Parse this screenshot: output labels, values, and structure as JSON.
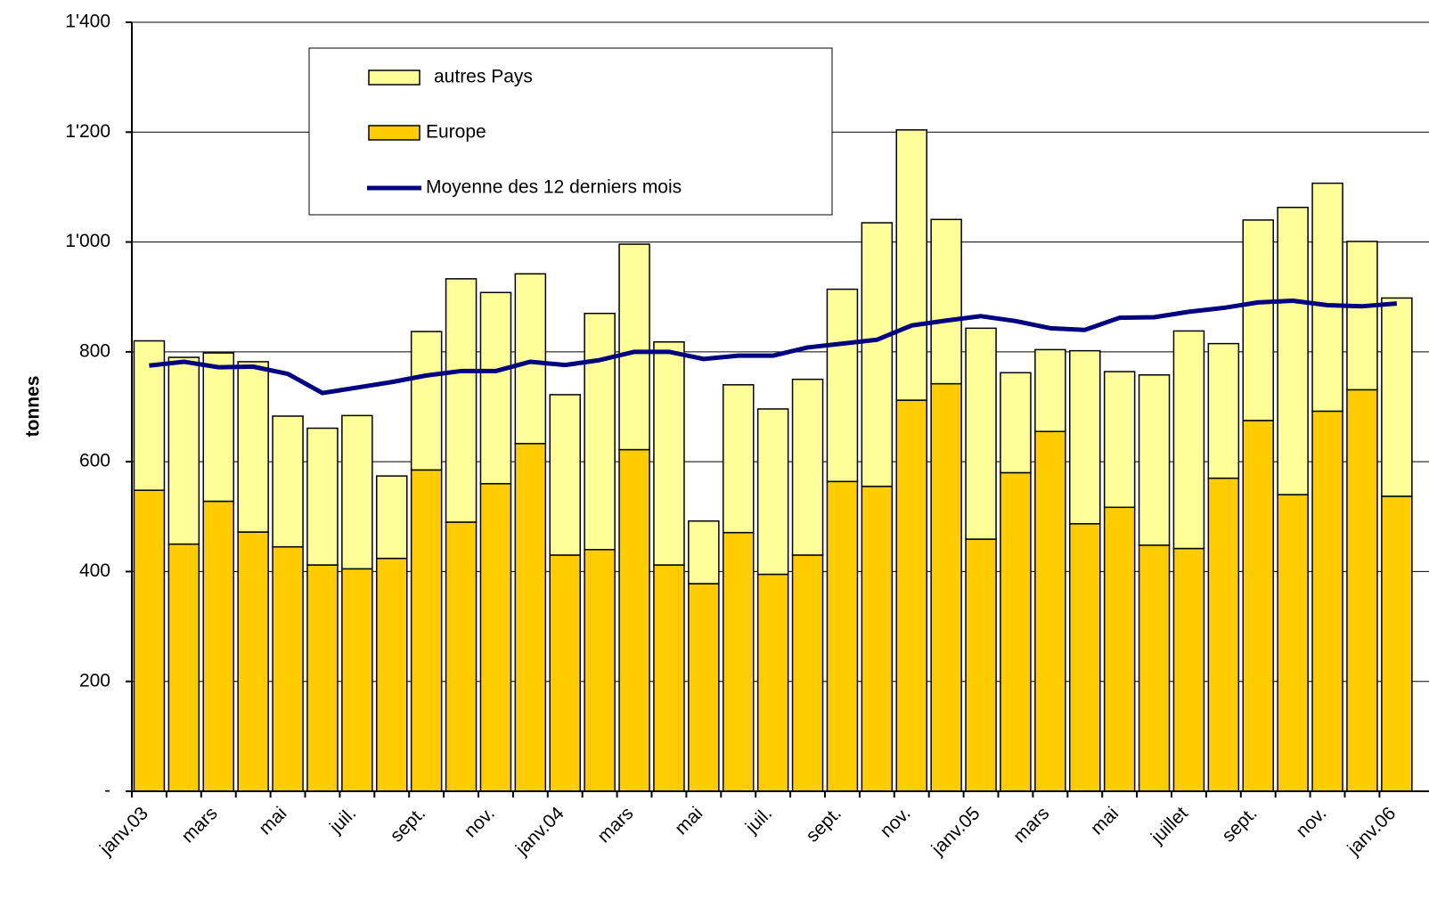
{
  "chart_data": {
    "type": "bar",
    "stacked": true,
    "y_label": "tonnes",
    "categories": [
      "janv.03",
      null,
      "mars",
      null,
      "mai",
      null,
      "juil.",
      null,
      "sept.",
      null,
      "nov.",
      null,
      "janv.04",
      null,
      "mars",
      null,
      "mai",
      null,
      "juil.",
      null,
      "sept.",
      null,
      "nov.",
      null,
      "janv.05",
      null,
      "mars",
      null,
      "mai",
      null,
      "juillet",
      null,
      "sept.",
      null,
      "nov.",
      null,
      "janv.06"
    ],
    "series": [
      {
        "name": "autres Pays",
        "type": "bar",
        "color": "#ffff99",
        "values": [
          272,
          340,
          270,
          310,
          238,
          249,
          279,
          150,
          252,
          443,
          348,
          309,
          292,
          430,
          374,
          406,
          114,
          269,
          301,
          320,
          350,
          480,
          492,
          299,
          384,
          182,
          149,
          315,
          247,
          310,
          396,
          245,
          365,
          523,
          415,
          270,
          361
        ]
      },
      {
        "name": "Europe",
        "type": "bar",
        "color": "#ffcc00",
        "values": [
          548,
          450,
          528,
          472,
          445,
          412,
          405,
          424,
          585,
          490,
          560,
          633,
          430,
          440,
          622,
          412,
          378,
          471,
          395,
          430,
          564,
          555,
          712,
          742,
          459,
          580,
          655,
          487,
          517,
          448,
          442,
          570,
          675,
          540,
          692,
          731,
          537
        ]
      },
      {
        "name": "Moyenne des 12 derniers mois",
        "type": "line",
        "color": "#000080",
        "values": [
          775,
          782,
          772,
          773,
          760,
          725,
          735,
          745,
          757,
          765,
          765,
          782,
          776,
          785,
          800,
          800,
          787,
          793,
          793,
          808,
          815,
          822,
          848,
          857,
          865,
          856,
          843,
          840,
          862,
          863,
          873,
          880,
          890,
          893,
          885,
          883,
          888
        ]
      }
    ],
    "ylim": [
      0,
      1400
    ],
    "yticks": [
      {
        "value": 0,
        "label": "-"
      },
      200,
      400,
      600,
      800,
      {
        "value": 1000,
        "label": "1'000"
      },
      {
        "value": 1200,
        "label": "1'200"
      },
      {
        "value": 1400,
        "label": "1'400"
      }
    ],
    "grid": true
  }
}
